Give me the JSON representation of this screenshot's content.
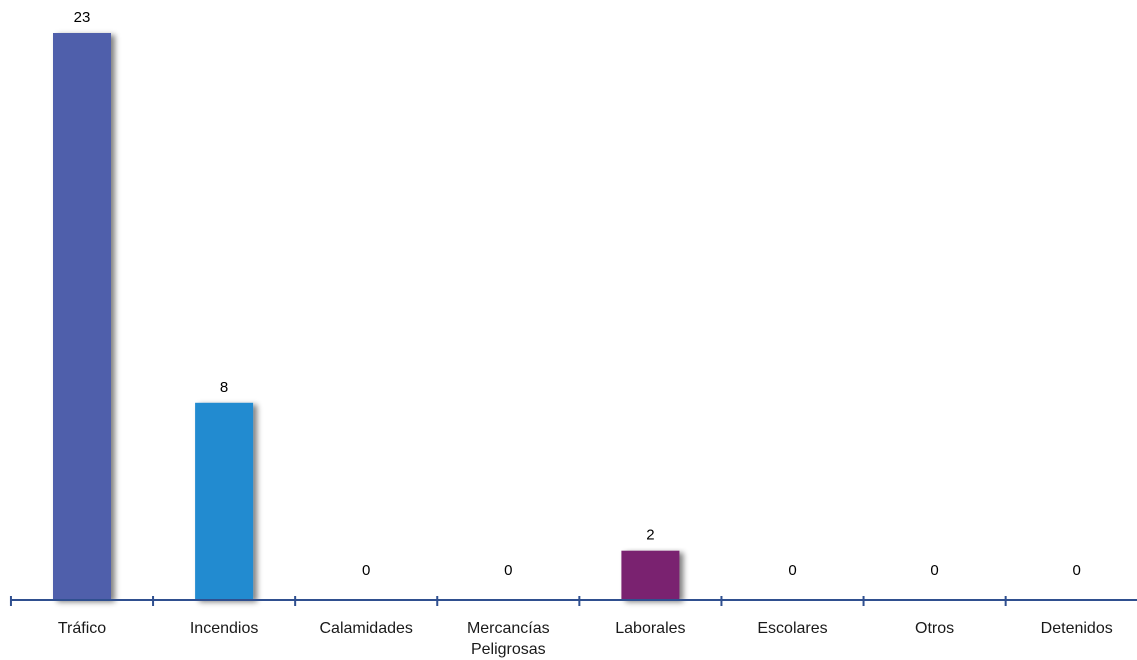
{
  "chart_data": {
    "type": "bar",
    "categories": [
      "Tráfico",
      "Incendios",
      "Calamidades",
      "Mercancías Peligrosas",
      "Laborales",
      "Escolares",
      "Otros",
      "Detenidos"
    ],
    "category_lines": [
      [
        "Tráfico"
      ],
      [
        "Incendios"
      ],
      [
        "Calamidades"
      ],
      [
        "Mercancías",
        "Peligrosas"
      ],
      [
        "Laborales"
      ],
      [
        "Escolares"
      ],
      [
        "Otros"
      ],
      [
        "Detenidos"
      ]
    ],
    "values": [
      23,
      8,
      0,
      0,
      2,
      0,
      0,
      0
    ],
    "bar_colors": [
      "#4f5fab",
      "#238bd0",
      "#238bd0",
      "#238bd0",
      "#7a2370",
      "#4f5fab",
      "#4f5fab",
      "#4f5fab"
    ],
    "axis_color": "#2f4f8f",
    "title": "",
    "xlabel": "",
    "ylabel": "",
    "ylim": [
      0,
      23
    ],
    "grid": false,
    "legend": "none",
    "data_labels": true
  }
}
